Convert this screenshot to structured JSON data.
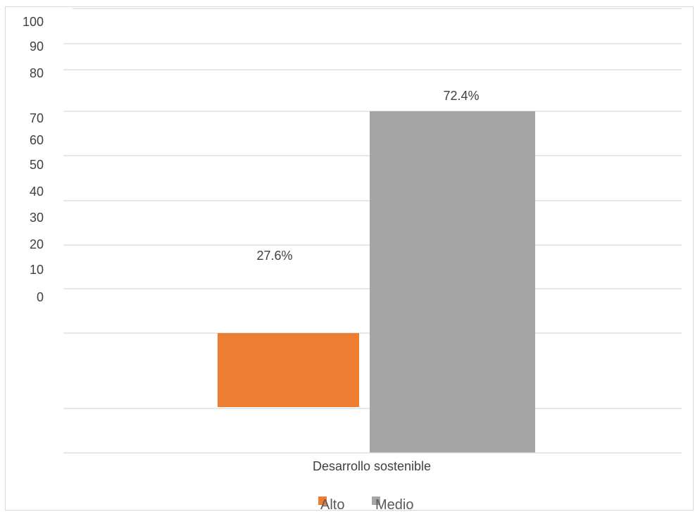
{
  "chart_data": {
    "type": "bar",
    "categories": [
      "Desarrollo sostenible"
    ],
    "series": [
      {
        "name": "Alto",
        "values": [
          27.6
        ],
        "label": "27.6%",
        "color": "#ED7D31"
      },
      {
        "name": "Medio",
        "values": [
          72.4
        ],
        "label": "72.4%",
        "color": "#A5A5A5"
      }
    ],
    "y_ticks": [
      "100",
      "90",
      "80",
      "70",
      "60",
      "50",
      "40",
      "30",
      "20",
      "10",
      "0"
    ],
    "ylim": [
      0,
      100
    ],
    "grid": true,
    "legend_position": "bottom"
  }
}
